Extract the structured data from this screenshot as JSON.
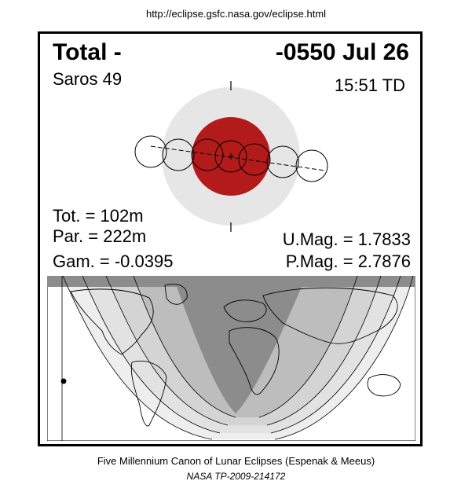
{
  "header": {
    "url": "http://eclipse.gsfc.nasa.gov/eclipse.html"
  },
  "eclipse": {
    "type_label": "Total  -",
    "date": "-0550 Jul 26",
    "saros": "Saros  49",
    "time": "15:51 TD",
    "tot": "Tot. = 102m",
    "par": "Par. = 222m",
    "gam": "Gam. = -0.0395",
    "umag": "U.Mag. = 1.7833",
    "pmag": "P.Mag. = 2.7876"
  },
  "colors": {
    "umbra": "#b31a1a",
    "penumbra": "#e6e6e6",
    "map_total": "#8c8c8c",
    "map_light": "#d4d4d4"
  },
  "footer": {
    "line1": "Five Millennium Canon of Lunar Eclipses (Espenak & Meeus)",
    "line2": "NASA TP-2009-214172"
  }
}
